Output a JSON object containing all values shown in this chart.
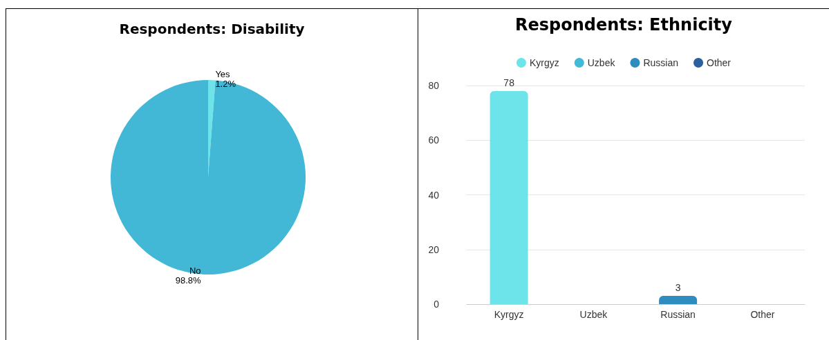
{
  "chart_data": [
    {
      "type": "pie",
      "title": "Respondents: Disability",
      "categories": [
        "Yes",
        "No"
      ],
      "values": [
        1.2,
        98.8
      ],
      "colors": [
        "#6ee3e8",
        "#42b8d6"
      ],
      "value_labels": [
        "1.2%",
        "98.8%"
      ],
      "legend": false
    },
    {
      "type": "bar",
      "title": "Respondents: Ethnicity",
      "categories": [
        "Kyrgyz",
        "Uzbek",
        "Russian",
        "Other"
      ],
      "stacked": true,
      "series": [
        {
          "name": "Kyrgyz",
          "color": "#6ce4e9",
          "values": [
            78,
            null,
            null,
            null
          ],
          "value_labels": [
            "78",
            null,
            null,
            null
          ]
        },
        {
          "name": "Uzbek",
          "color": "#43b9d8",
          "values": [
            null,
            0,
            null,
            null
          ],
          "value_labels": [
            null,
            null,
            null,
            null
          ]
        },
        {
          "name": "Russian",
          "color": "#2e8cbf",
          "values": [
            null,
            null,
            3,
            null
          ],
          "value_labels": [
            null,
            null,
            "3",
            null
          ]
        },
        {
          "name": "Other",
          "color": "#2c5f9e",
          "values": [
            null,
            null,
            null,
            0
          ],
          "value_labels": [
            null,
            null,
            null,
            null
          ]
        }
      ],
      "ylim": [
        0,
        80
      ],
      "yticks": [
        0,
        20,
        40,
        60,
        80
      ],
      "grid": "y",
      "legend": "top"
    }
  ]
}
